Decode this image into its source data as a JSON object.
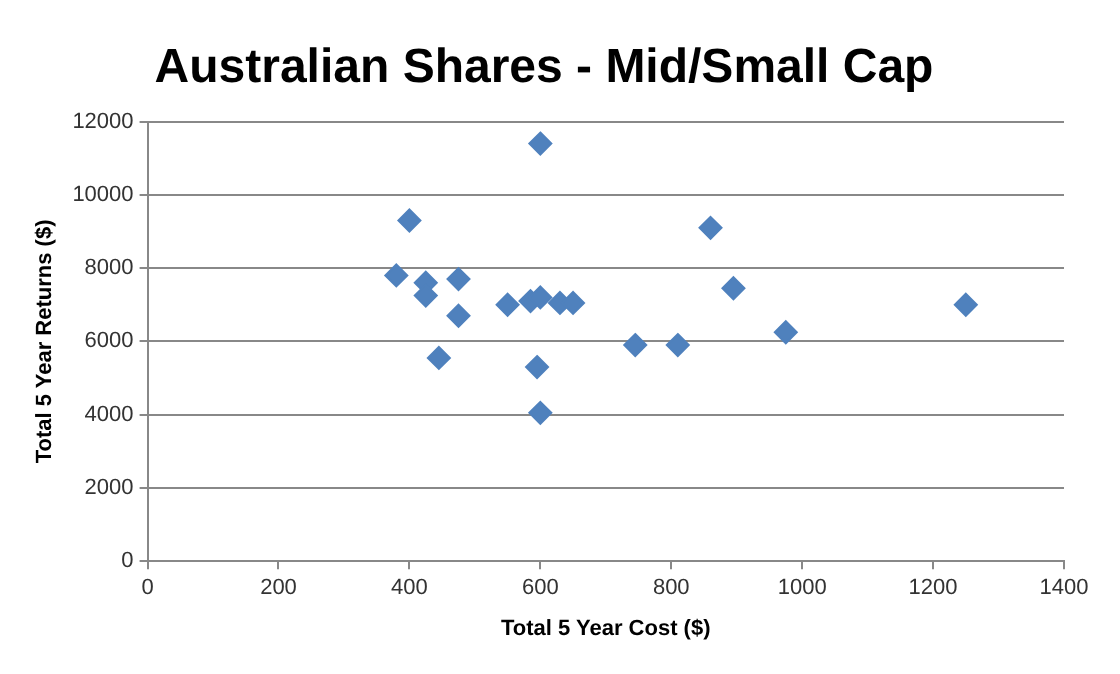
{
  "chart_data": {
    "type": "scatter",
    "title": "Australian Shares - Mid/Small Cap",
    "xlabel": "Total 5 Year Cost ($)",
    "ylabel": "Total 5 Year Returns ($)",
    "x": [
      600,
      400,
      380,
      425,
      425,
      475,
      475,
      445,
      550,
      585,
      600,
      630,
      650,
      595,
      600,
      745,
      810,
      860,
      895,
      975,
      1250
    ],
    "values": [
      11400,
      9300,
      7800,
      7600,
      7250,
      7700,
      6700,
      5550,
      7000,
      7100,
      7200,
      7050,
      7050,
      5300,
      4050,
      5900,
      5900,
      9100,
      7450,
      6250,
      7000
    ],
    "color": "#4f81bd",
    "marker": "diamond",
    "xlim": [
      0,
      1400
    ],
    "xticks": [
      0,
      200,
      400,
      600,
      800,
      1000,
      1200,
      1400
    ],
    "ylim": [
      0,
      12000
    ],
    "yticks": [
      0,
      2000,
      4000,
      6000,
      8000,
      10000,
      12000
    ],
    "grid": "y",
    "legend": false
  }
}
